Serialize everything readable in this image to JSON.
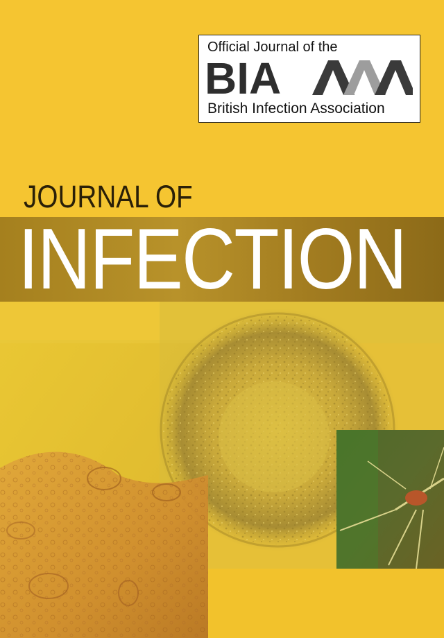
{
  "logo": {
    "top_text": "Official Journal of the",
    "mark_text": "BIA",
    "bottom_text": "British Infection Association"
  },
  "title": {
    "line1": "JOURNAL OF",
    "line2": "INFECTION"
  },
  "colors": {
    "background": "#f5c531",
    "band": "#a5801e",
    "title_light": "#ffffff",
    "title_dark": "#2a2008"
  },
  "images": {
    "virus": "virus-micrograph",
    "cell": "cell-micrograph",
    "mosquito": "mosquito-photo"
  }
}
